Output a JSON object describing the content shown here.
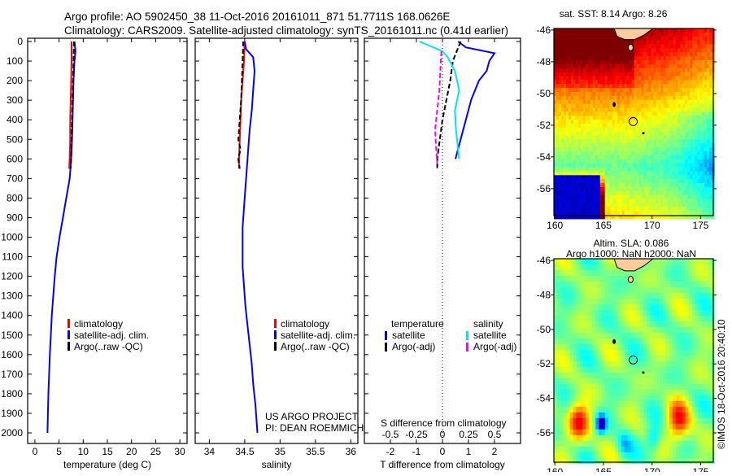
{
  "title": {
    "line1": "Argo profile: AO 5902450_38 11-Oct-2016 20161011_871 51.7711S 168.0626E",
    "line2": "Climatology: CARS2009. Satellite-adjusted climatology: synTS_20161011.nc (0.41d earlier)"
  },
  "colors": {
    "clim": "#ff0000",
    "sat": "#0000ff",
    "argo": "#000000",
    "sat_s": "#00e5ee",
    "argo_s": "#ff00ff"
  },
  "chart_data": [
    {
      "type": "line",
      "name": "temperature",
      "xlabel": "temperature (deg C)",
      "xlim": [
        -1.5,
        31.5
      ],
      "xticks": [
        "0",
        "5",
        "10",
        "15",
        "20",
        "25",
        "30"
      ],
      "xtick_values": [
        0,
        5,
        10,
        15,
        20,
        25,
        30
      ],
      "ylim": [
        0,
        2060
      ],
      "yticks": [
        "0",
        "100",
        "200",
        "300",
        "400",
        "500",
        "600",
        "700",
        "800",
        "900",
        "1000",
        "1100",
        "1200",
        "1300",
        "1400",
        "1500",
        "1600",
        "1700",
        "1800",
        "1900",
        "2000"
      ],
      "legend": [
        "climatology",
        "satellite-adj. clim.",
        "Argo(..raw -QC)"
      ],
      "series": [
        {
          "name": "climatology",
          "color": "clim",
          "depth": [
            0,
            100,
            200,
            300,
            400,
            500,
            600,
            650
          ],
          "values": [
            7.6,
            7.6,
            7.5,
            7.4,
            7.3,
            7.3,
            7.2,
            7.1
          ]
        },
        {
          "name": "satellite-adj. clim.",
          "color": "sat",
          "depth": [
            0,
            50,
            100,
            200,
            300,
            400,
            500,
            600,
            700,
            800,
            900,
            1000,
            1100,
            1200,
            1300,
            1400,
            1500,
            1600,
            1700,
            1800,
            1900,
            2000
          ],
          "values": [
            8.2,
            8.4,
            8.2,
            8.0,
            7.9,
            7.8,
            7.7,
            7.5,
            7.2,
            6.5,
            5.8,
            5.1,
            4.5,
            4.1,
            3.8,
            3.5,
            3.3,
            3.1,
            2.95,
            2.8,
            2.7,
            2.6
          ],
          "dashed": false
        },
        {
          "name": "Argo(..raw -QC)",
          "color": "argo",
          "depth": [
            0,
            100,
            200,
            300,
            400,
            500,
            600,
            650
          ],
          "values": [
            8.1,
            8.0,
            7.9,
            7.8,
            7.7,
            7.6,
            7.5,
            7.4
          ],
          "dashed": true
        }
      ]
    },
    {
      "type": "line",
      "name": "salinity",
      "xlabel": "salinity",
      "xlim": [
        33.8,
        36.1
      ],
      "xticks": [
        "34",
        "34.5",
        "35",
        "35.5",
        "36"
      ],
      "xtick_values": [
        34,
        34.5,
        35,
        35.5,
        36
      ],
      "ylim": [
        0,
        2060
      ],
      "legend": [
        "climatology",
        "satellite-adj. clim.",
        "Argo(..raw -QC)"
      ],
      "annotations": [
        "US ARGO PROJECT",
        "PI: DEAN ROEMMICH"
      ],
      "series": [
        {
          "name": "climatology",
          "color": "clim",
          "depth": [
            0,
            100,
            200,
            300,
            400,
            500,
            600,
            650
          ],
          "values": [
            34.5,
            34.49,
            34.47,
            34.45,
            34.44,
            34.43,
            34.42,
            34.42
          ]
        },
        {
          "name": "satellite-adj. clim.",
          "color": "sat",
          "depth": [
            0,
            40,
            80,
            150,
            250,
            350,
            450,
            550,
            650,
            750,
            850,
            950,
            1050,
            1150,
            1250,
            1350,
            1450,
            1550,
            1650,
            1750,
            1850,
            1950,
            2000
          ],
          "values": [
            34.5,
            34.52,
            34.62,
            34.64,
            34.62,
            34.6,
            34.57,
            34.55,
            34.53,
            34.51,
            34.49,
            34.47,
            34.47,
            34.47,
            34.49,
            34.51,
            34.54,
            34.57,
            34.6,
            34.62,
            34.65,
            34.67,
            34.68
          ]
        },
        {
          "name": "Argo(..raw -QC)",
          "color": "argo",
          "depth": [
            0,
            100,
            200,
            300,
            400,
            500,
            550,
            600,
            650
          ],
          "values": [
            34.48,
            34.47,
            34.46,
            34.45,
            34.43,
            34.41,
            34.44,
            34.41,
            34.43
          ],
          "dashed": true
        }
      ]
    },
    {
      "type": "line",
      "name": "difference",
      "xlabel": "T difference from climatology",
      "x2label": "S difference from climatology",
      "xlim": [
        -3,
        3
      ],
      "xticks": [
        "-2",
        "-1",
        "0",
        "1",
        "2"
      ],
      "xtick_values": [
        -2,
        -1,
        0,
        1,
        2
      ],
      "x2ticks": [
        "-0.5",
        "-0.25",
        "0",
        "0.25",
        "0.5"
      ],
      "x2tick_values": [
        -0.5,
        -0.25,
        0,
        0.25,
        0.5
      ],
      "legend_temperature_title": "temperature",
      "legend_salinity_title": "salinity",
      "legend": [
        "satellite",
        "Argo(-adj)",
        "satellite",
        "Argo(-adj)"
      ],
      "series": [
        {
          "name": "T satellite",
          "color": "sat",
          "unit": "T",
          "depth": [
            0,
            30,
            60,
            100,
            150,
            200,
            300,
            400,
            500,
            600
          ],
          "values": [
            0.6,
            0.9,
            2.0,
            1.8,
            1.7,
            1.4,
            1.1,
            0.9,
            0.7,
            0.5
          ]
        },
        {
          "name": "T Argo(-adj)",
          "color": "argo",
          "unit": "T",
          "dashed": true,
          "depth": [
            0,
            50,
            100,
            200,
            300,
            400,
            500,
            600,
            650
          ],
          "values": [
            0.7,
            0.55,
            0.4,
            0.3,
            0.15,
            0.0,
            -0.1,
            -0.2,
            -0.2
          ]
        },
        {
          "name": "S satellite",
          "color": "sat_s",
          "unit": "S",
          "depth": [
            0,
            50,
            80,
            150,
            250,
            350,
            450,
            550,
            600
          ],
          "values": [
            -0.22,
            0.0,
            0.05,
            0.12,
            0.16,
            0.12,
            0.13,
            0.15,
            0.16
          ]
        },
        {
          "name": "S Argo(-adj)",
          "color": "argo_s",
          "unit": "S",
          "dashed": true,
          "depth": [
            50,
            150,
            250,
            350,
            450,
            550,
            620
          ],
          "values": [
            -0.01,
            -0.02,
            -0.03,
            -0.05,
            -0.07,
            -0.06,
            -0.05
          ]
        }
      ]
    },
    {
      "type": "heatmap",
      "name": "sst-map",
      "title": "sat. SST: 8.14 Argo: 8.26",
      "xticks": [
        "160",
        "165",
        "170",
        "175"
      ],
      "xtick_values": [
        160,
        165,
        170,
        175
      ],
      "yticks": [
        "-46",
        "-48",
        "-50",
        "-52",
        "-54",
        "-56"
      ],
      "ytick_values": [
        -46,
        -48,
        -50,
        -52,
        -54,
        -56
      ],
      "xlim": [
        159.9,
        176.3
      ],
      "ylim": [
        -57.7,
        -45.9
      ],
      "argo_position": [
        168.06,
        -51.77
      ]
    },
    {
      "type": "heatmap",
      "name": "sla-map",
      "title": "Altim. SLA: 0.086",
      "subtitle": "Argo h1000: NaN h2000: NaN",
      "xticks": [
        "160",
        "165",
        "170",
        "175"
      ],
      "xtick_values": [
        160,
        165,
        170,
        175
      ],
      "yticks": [
        "-46",
        "-48",
        "-50",
        "-52",
        "-54",
        "-56"
      ],
      "ytick_values": [
        -46,
        -48,
        -50,
        -52,
        -54,
        -56
      ],
      "xlim": [
        159.9,
        176.3
      ],
      "ylim": [
        -57.7,
        -45.9
      ],
      "argo_position": [
        168.06,
        -51.77
      ]
    }
  ],
  "footer": {
    "credit": "©IMOS 18-Oct-2016 20:40:10"
  }
}
